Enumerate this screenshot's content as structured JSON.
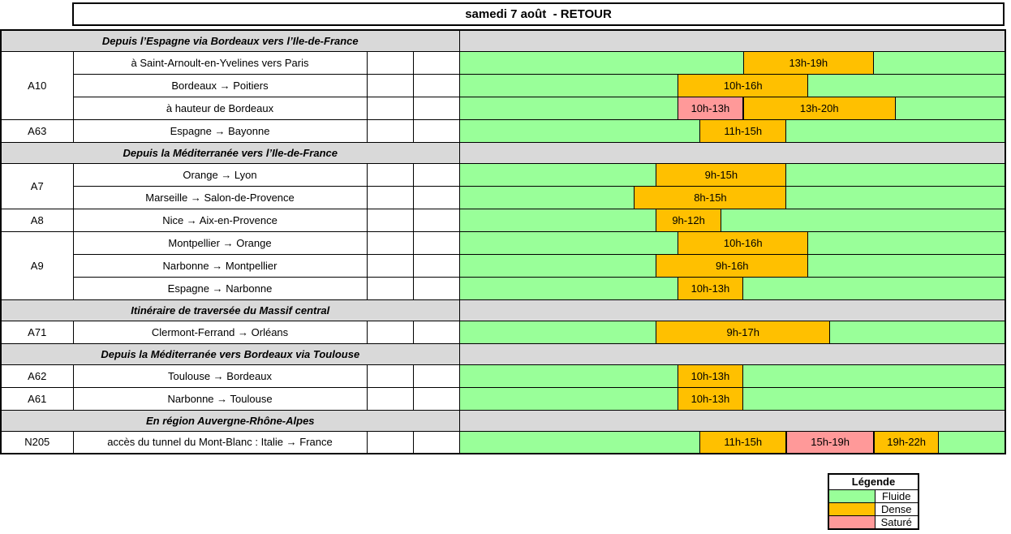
{
  "page": {
    "title": "samedi 7 août  - RETOUR"
  },
  "colors": {
    "fluide": "#99ff99",
    "dense": "#ffc000",
    "sature": "#ff9999",
    "section_bg": "#d9d9d9",
    "grid_line": "#000000"
  },
  "chart_data": {
    "type": "table",
    "title": "samedi 7 août  - RETOUR",
    "timeline": {
      "unit": "hours",
      "start": 0,
      "end": 25
    },
    "default_status": "fluide",
    "sections": [
      {
        "title": "Depuis l’Espagne via Bordeaux vers l’Ile-de-France",
        "groups": [
          {
            "code": "A10",
            "rows": [
              {
                "label": "à Saint-Arnoult-en-Yvelines vers Paris",
                "segments": [
                  {
                    "from": 13,
                    "to": 19,
                    "status": "dense",
                    "label": "13h-19h"
                  }
                ]
              },
              {
                "label": "Bordeaux →  Poitiers",
                "segments": [
                  {
                    "from": 10,
                    "to": 16,
                    "status": "dense",
                    "label": "10h-16h"
                  }
                ]
              },
              {
                "label": "à hauteur de Bordeaux",
                "segments": [
                  {
                    "from": 10,
                    "to": 13,
                    "status": "sature",
                    "label": "10h-13h"
                  },
                  {
                    "from": 13,
                    "to": 20,
                    "status": "dense",
                    "label": "13h-20h"
                  }
                ]
              }
            ]
          },
          {
            "code": "A63",
            "rows": [
              {
                "label": "Espagne  →  Bayonne",
                "segments": [
                  {
                    "from": 11,
                    "to": 15,
                    "status": "dense",
                    "label": "11h-15h"
                  }
                ]
              }
            ]
          }
        ]
      },
      {
        "title": "Depuis la Méditerranée vers l’Ile-de-France",
        "groups": [
          {
            "code": "A7",
            "rows": [
              {
                "label": "Orange  →  Lyon",
                "segments": [
                  {
                    "from": 9,
                    "to": 15,
                    "status": "dense",
                    "label": "9h-15h"
                  }
                ]
              },
              {
                "label": "Marseille  →  Salon-de-Provence",
                "segments": [
                  {
                    "from": 8,
                    "to": 15,
                    "status": "dense",
                    "label": "8h-15h"
                  }
                ]
              }
            ]
          },
          {
            "code": "A8",
            "rows": [
              {
                "label": "Nice  →  Aix-en-Provence",
                "segments": [
                  {
                    "from": 9,
                    "to": 12,
                    "status": "dense",
                    "label": "9h-12h"
                  }
                ]
              }
            ]
          },
          {
            "code": "A9",
            "rows": [
              {
                "label": "Montpellier →  Orange",
                "segments": [
                  {
                    "from": 10,
                    "to": 16,
                    "status": "dense",
                    "label": "10h-16h"
                  }
                ]
              },
              {
                "label": "Narbonne  →  Montpellier",
                "segments": [
                  {
                    "from": 9,
                    "to": 16,
                    "status": "dense",
                    "label": "9h-16h"
                  }
                ]
              },
              {
                "label": "Espagne  →  Narbonne",
                "segments": [
                  {
                    "from": 10,
                    "to": 13,
                    "status": "dense",
                    "label": "10h-13h"
                  }
                ]
              }
            ]
          }
        ]
      },
      {
        "title": "Itinéraire de traversée du Massif central",
        "groups": [
          {
            "code": "A71",
            "rows": [
              {
                "label": "Clermont-Ferrand  →  Orléans",
                "segments": [
                  {
                    "from": 9,
                    "to": 17,
                    "status": "dense",
                    "label": "9h-17h"
                  }
                ]
              }
            ]
          }
        ]
      },
      {
        "title": "Depuis la Méditerranée vers Bordeaux via Toulouse",
        "groups": [
          {
            "code": "A62",
            "rows": [
              {
                "label": "Toulouse  →  Bordeaux",
                "segments": [
                  {
                    "from": 10,
                    "to": 13,
                    "status": "dense",
                    "label": "10h-13h"
                  }
                ]
              }
            ]
          },
          {
            "code": "A61",
            "rows": [
              {
                "label": "Narbonne →  Toulouse",
                "segments": [
                  {
                    "from": 10,
                    "to": 13,
                    "status": "dense",
                    "label": "10h-13h"
                  }
                ]
              }
            ]
          }
        ]
      },
      {
        "title": "En région Auvergne-Rhône-Alpes",
        "groups": [
          {
            "code": "N205",
            "rows": [
              {
                "label": "accès du tunnel du Mont-Blanc : Italie  →  France",
                "segments": [
                  {
                    "from": 11,
                    "to": 15,
                    "status": "dense",
                    "label": "11h-15h"
                  },
                  {
                    "from": 15,
                    "to": 19,
                    "status": "sature",
                    "label": "15h-19h"
                  },
                  {
                    "from": 19,
                    "to": 22,
                    "status": "dense",
                    "label": "19h-22h"
                  }
                ]
              }
            ]
          }
        ]
      }
    ]
  },
  "legend": {
    "title": "Légende",
    "items": [
      {
        "label": "Fluide",
        "status": "fluide"
      },
      {
        "label": "Dense",
        "status": "dense"
      },
      {
        "label": "Saturé",
        "status": "sature"
      }
    ]
  }
}
